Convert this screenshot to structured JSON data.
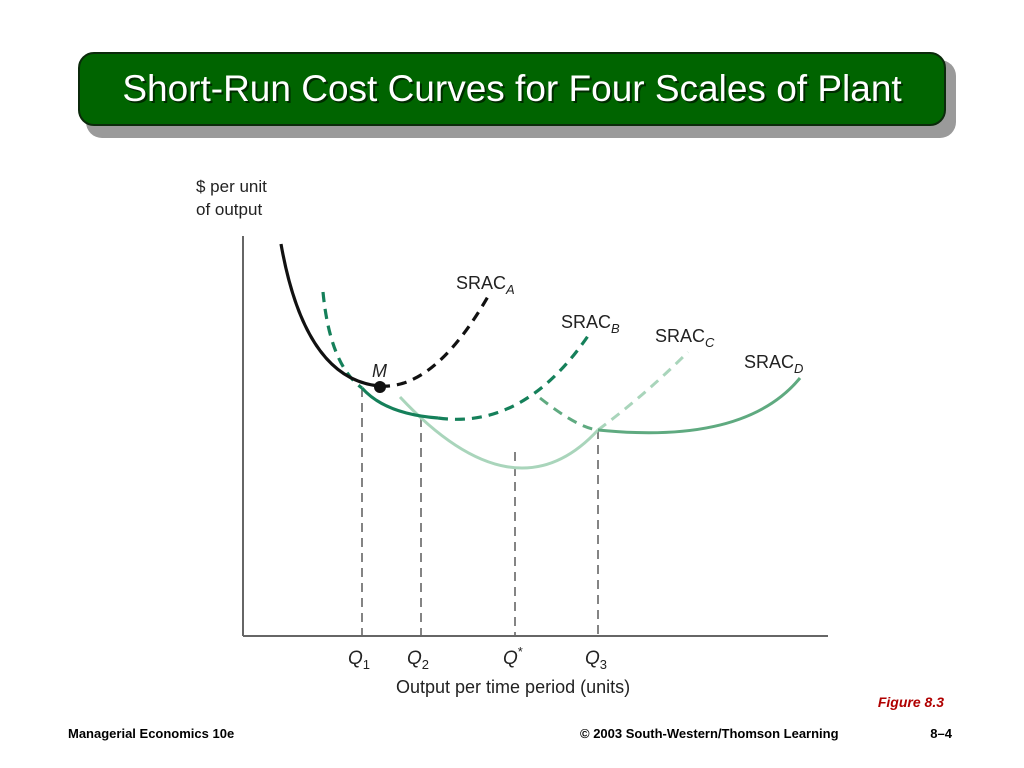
{
  "slide": {
    "title": "Short-Run Cost Curves for Four Scales of Plant",
    "figure_label": "Figure 8.3"
  },
  "footer": {
    "left": "Managerial Economics 10e",
    "center": "© 2003 South-Western/Thomson Learning",
    "right": "8–4"
  },
  "diagram": {
    "y_axis_label_line1": "$ per unit",
    "y_axis_label_line2": "of output",
    "x_axis_label": "Output per time period (units)",
    "point_label": "M",
    "curves": [
      {
        "id": "A",
        "base": "SRAC",
        "sub": "A",
        "color": "#111111"
      },
      {
        "id": "B",
        "base": "SRAC",
        "sub": "B",
        "color": "#15805a"
      },
      {
        "id": "C",
        "base": "SRAC",
        "sub": "C",
        "color": "#a9d5bb"
      },
      {
        "id": "D",
        "base": "SRAC",
        "sub": "D",
        "color": "#5faa80"
      }
    ],
    "q_labels": [
      {
        "id": "q1",
        "base": "Q",
        "sub": "1",
        "sup": ""
      },
      {
        "id": "q2",
        "base": "Q",
        "sub": "2",
        "sup": ""
      },
      {
        "id": "qstar",
        "base": "Q",
        "sub": "",
        "sup": "*"
      },
      {
        "id": "q3",
        "base": "Q",
        "sub": "3",
        "sup": ""
      }
    ]
  }
}
